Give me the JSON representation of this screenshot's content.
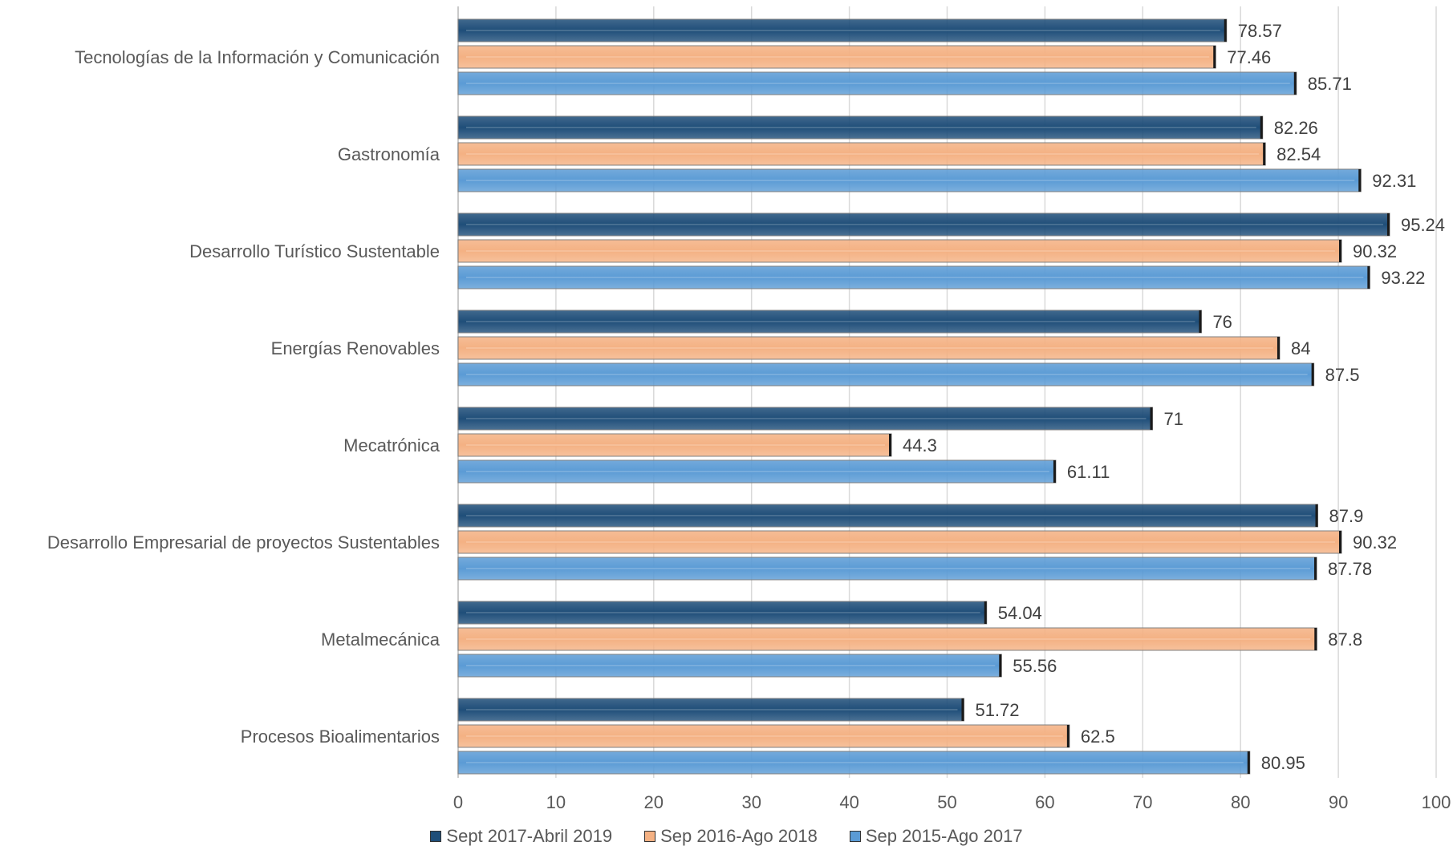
{
  "chart_data": {
    "type": "bar",
    "orientation": "horizontal",
    "title": "",
    "xlabel": "",
    "ylabel": "",
    "xlim": [
      0,
      100
    ],
    "ticks": [
      "0",
      "10",
      "20",
      "30",
      "40",
      "50",
      "60",
      "70",
      "80",
      "90",
      "100"
    ],
    "grid": true,
    "legend_position": "bottom",
    "categories": [
      "Tecnologías de la Información y Comunicación",
      "Gastronomía",
      "Desarrollo Turístico Sustentable",
      "Energías Renovables",
      "Mecatrónica",
      "Desarrollo Empresarial de proyectos Sustentables",
      "Metalmecánica",
      "Procesos Bioalimentarios"
    ],
    "series": [
      {
        "name": "Sept 2017-Abril 2019",
        "color": "#1f4e79",
        "values": [
          78.57,
          82.26,
          95.24,
          76,
          71,
          87.9,
          54.04,
          51.72
        ],
        "labels": [
          "78.57",
          "82.26",
          "95.24",
          "76",
          "71",
          "87.9",
          "54.04",
          "51.72"
        ]
      },
      {
        "name": "Sep 2016-Ago 2018",
        "color": "#f4b183",
        "values": [
          77.46,
          82.54,
          90.32,
          84,
          44.3,
          90.32,
          87.8,
          62.5
        ],
        "labels": [
          "77.46",
          "82.54",
          "90.32",
          "84",
          "44.3",
          "90.32",
          "87.8",
          "62.5"
        ]
      },
      {
        "name": "Sep 2015-Ago 2017",
        "color": "#5b9bd5",
        "values": [
          85.71,
          92.31,
          93.22,
          87.5,
          61.11,
          87.78,
          55.56,
          80.95
        ],
        "labels": [
          "85.71",
          "92.31",
          "93.22",
          "87.5",
          "61.11",
          "87.78",
          "55.56",
          "80.95"
        ]
      }
    ]
  }
}
